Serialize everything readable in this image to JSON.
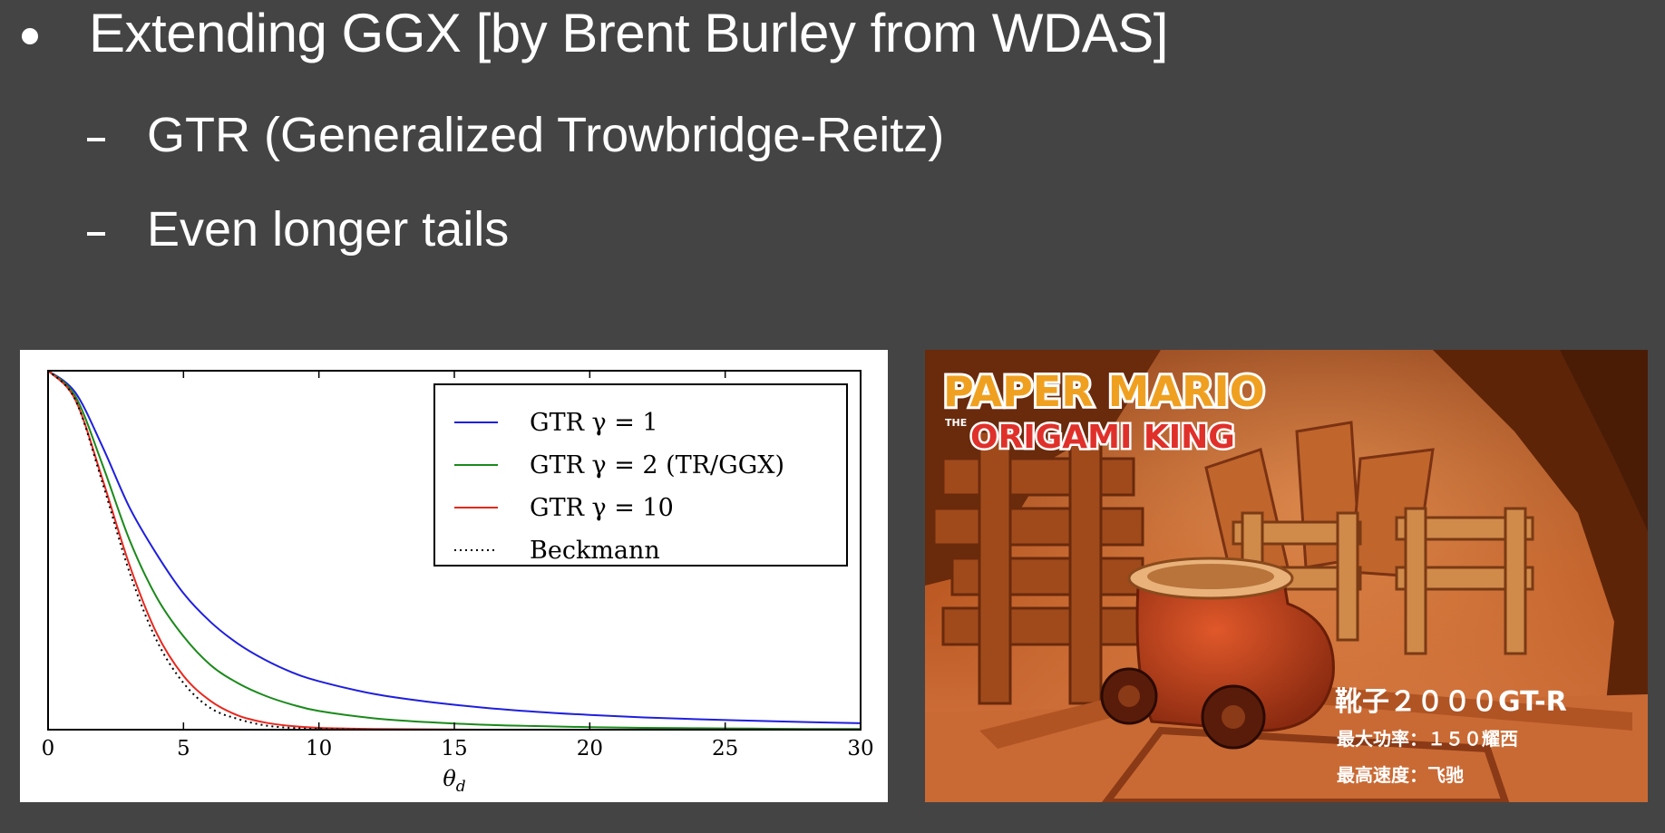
{
  "slide": {
    "bullet": "Extending GGX [by Brent Burley from WDAS]",
    "sub_items": [
      "GTR (Generalized Trowbridge-Reitz)",
      "Even longer tails"
    ]
  },
  "chart_data": {
    "type": "line",
    "title": "",
    "xlabel": "θ",
    "xlabel_subscript": "d",
    "ylabel": "",
    "xlim": [
      0,
      30
    ],
    "ylim": [
      0,
      1
    ],
    "x_ticks": [
      "0",
      "5",
      "10",
      "15",
      "20",
      "25",
      "30"
    ],
    "grid": false,
    "legend_position": "top-right",
    "x": [
      0,
      1,
      2,
      3,
      4,
      5,
      6,
      7,
      8,
      9,
      10,
      12,
      14,
      16,
      18,
      20,
      22,
      24,
      26,
      28,
      30
    ],
    "series": [
      {
        "name": "GTR γ = 1",
        "color": "#1f1fdf",
        "style": "solid",
        "values": [
          1.0,
          0.94,
          0.79,
          0.62,
          0.49,
          0.38,
          0.3,
          0.24,
          0.195,
          0.16,
          0.135,
          0.1,
          0.078,
          0.062,
          0.05,
          0.041,
          0.034,
          0.029,
          0.025,
          0.021,
          0.018
        ]
      },
      {
        "name": "GTR γ = 2 (TR/GGX)",
        "color": "#1a8a1a",
        "style": "solid",
        "values": [
          1.0,
          0.93,
          0.74,
          0.53,
          0.37,
          0.26,
          0.18,
          0.13,
          0.095,
          0.07,
          0.052,
          0.032,
          0.021,
          0.014,
          0.01,
          0.007,
          0.005,
          0.004,
          0.003,
          0.002,
          0.002
        ]
      },
      {
        "name": "GTR γ = 10",
        "color": "#e8281e",
        "style": "solid",
        "values": [
          1.0,
          0.92,
          0.7,
          0.46,
          0.27,
          0.15,
          0.08,
          0.04,
          0.02,
          0.01,
          0.005,
          0.002,
          0.001,
          0,
          0,
          0,
          0,
          0,
          0,
          0,
          0
        ]
      },
      {
        "name": "Beckmann",
        "color": "#000000",
        "style": "dotted",
        "values": [
          1.0,
          0.92,
          0.69,
          0.44,
          0.25,
          0.13,
          0.06,
          0.03,
          0.012,
          0.005,
          0.002,
          0,
          0,
          0,
          0,
          0,
          0,
          0,
          0,
          0,
          0
        ]
      }
    ]
  },
  "game_screenshot": {
    "logo_line1": "PAPER MARIO",
    "logo_the": "THE",
    "logo_line2": "ORIGAMI KING",
    "caption_title": "靴子２０００GT-R",
    "caption_line1": "最大功率：１５０耀西",
    "caption_line2": "最高速度：飞驰"
  }
}
